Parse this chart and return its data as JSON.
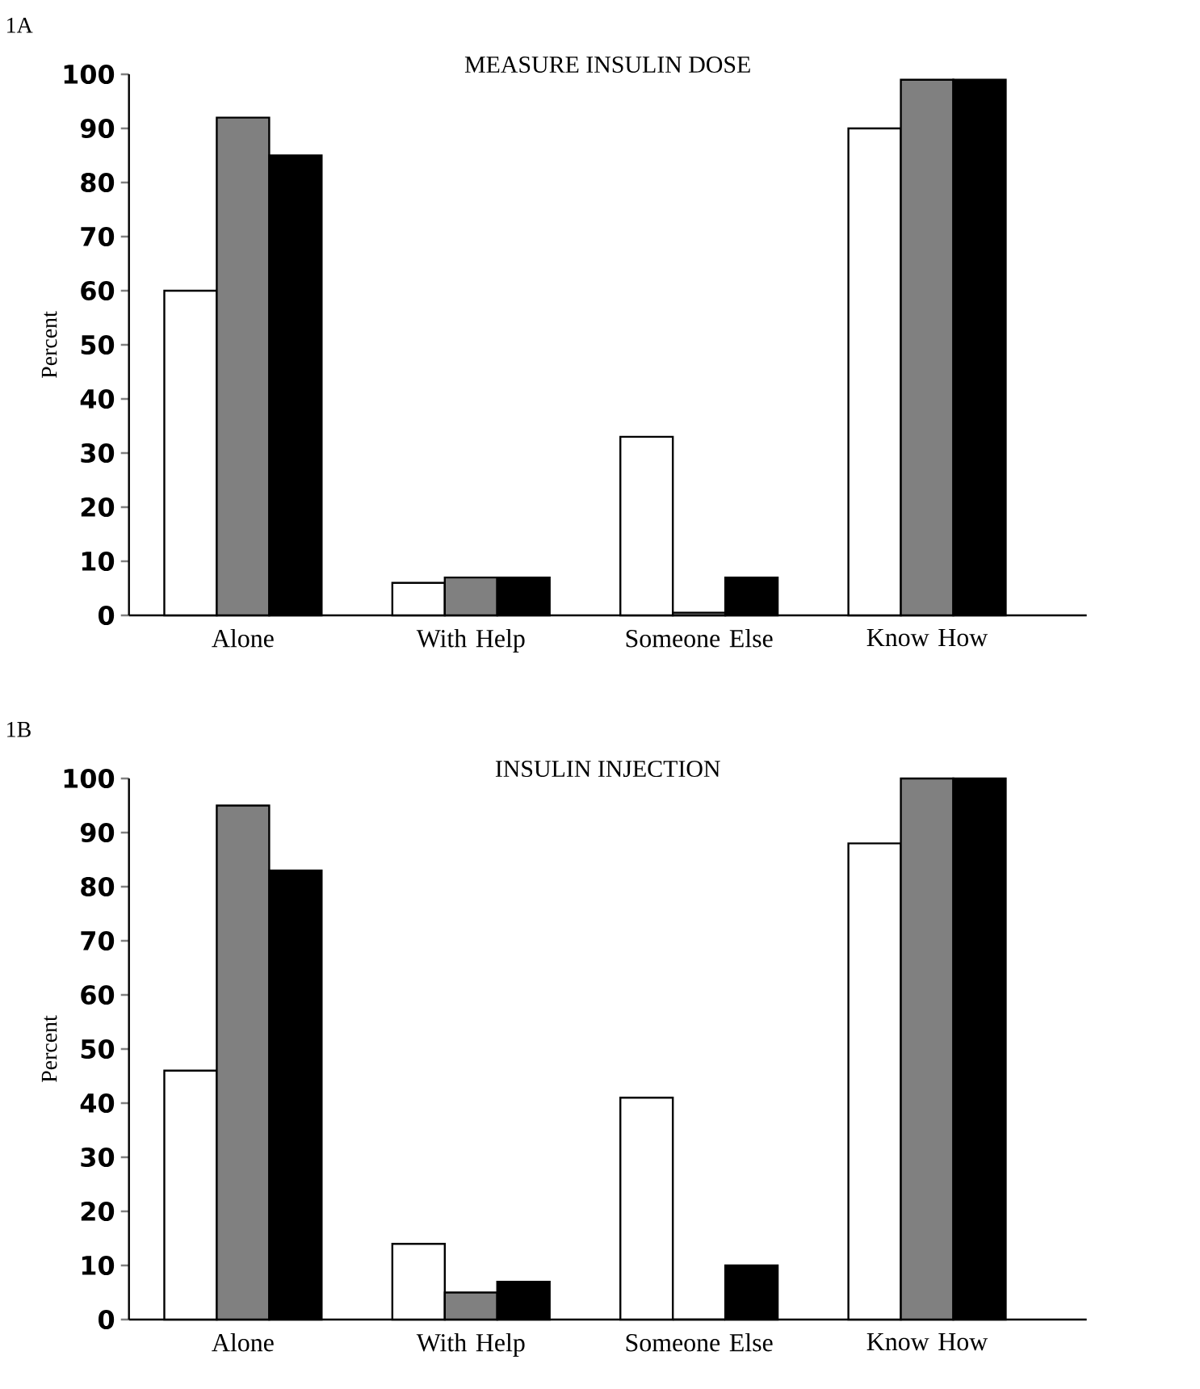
{
  "chart_data": [
    {
      "type": "bar",
      "title": "MEASURE INSULIN DOSE",
      "ylabel": "Percent",
      "annotations": [
        "1A"
      ],
      "categories": [
        "Alone",
        "With Help",
        "Someone Else",
        "Know How"
      ],
      "series": [
        {
          "color": "#ffffff",
          "values": [
            60,
            6,
            33,
            90
          ]
        },
        {
          "color": "#808080",
          "values": [
            92,
            7,
            0.5,
            99
          ]
        },
        {
          "color": "#000000",
          "values": [
            85,
            7,
            7,
            99
          ]
        }
      ],
      "ylim": [
        0,
        100
      ],
      "yticks": [
        0,
        10,
        20,
        30,
        40,
        50,
        60,
        70,
        80,
        90,
        100
      ]
    },
    {
      "type": "bar",
      "title": "INSULIN INJECTION",
      "ylabel": "Percent",
      "annotations": [
        "1B"
      ],
      "categories": [
        "Alone",
        "With Help",
        "Someone Else",
        "Know How"
      ],
      "series": [
        {
          "color": "#ffffff",
          "values": [
            46,
            14,
            41,
            88
          ]
        },
        {
          "color": "#808080",
          "values": [
            95,
            5,
            0,
            100
          ]
        },
        {
          "color": "#000000",
          "values": [
            83,
            7,
            10,
            100
          ]
        }
      ],
      "ylim": [
        0,
        100
      ],
      "yticks": [
        0,
        10,
        20,
        30,
        40,
        50,
        60,
        70,
        80,
        90,
        100
      ]
    }
  ]
}
